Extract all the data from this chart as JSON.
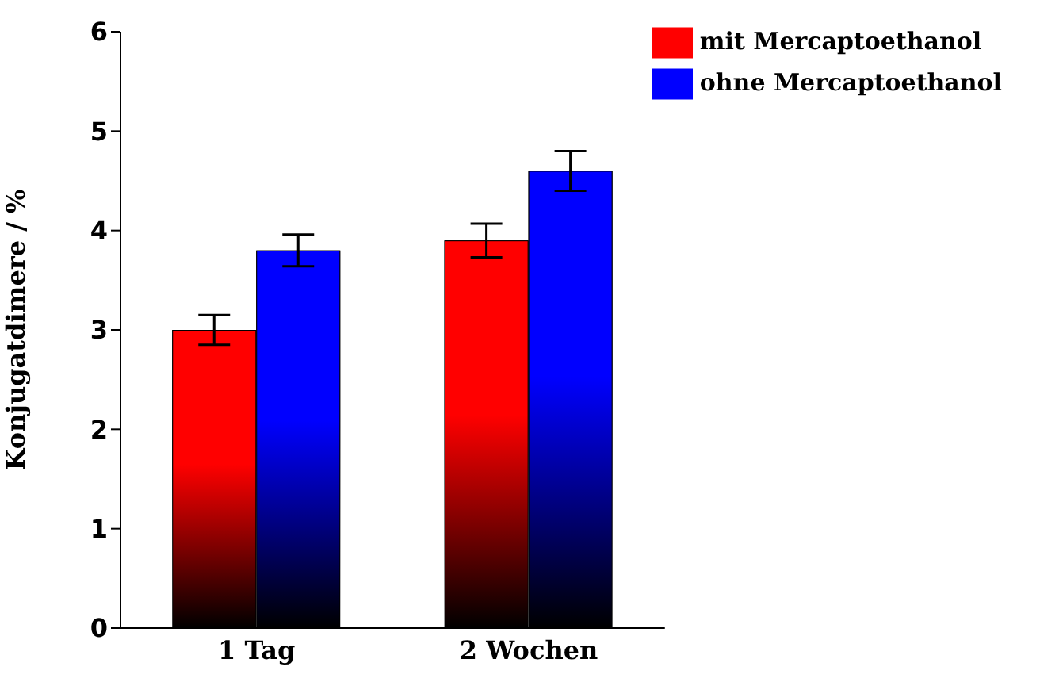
{
  "chart_data": {
    "type": "bar",
    "categories": [
      "1 Tag",
      "2 Wochen"
    ],
    "ylabel": "Konjugatdimere / %",
    "ylim": [
      0,
      6
    ],
    "yticks": [
      0,
      1,
      2,
      3,
      4,
      5,
      6
    ],
    "grid": false,
    "legend": "top right",
    "series": [
      {
        "name": "mit Mercaptoethanol",
        "color": "#ff0000",
        "values": [
          3.0,
          3.9
        ],
        "errors": [
          0.15,
          0.17
        ]
      },
      {
        "name": "ohne Mercaptoethanol",
        "color": "#0000ff",
        "values": [
          3.8,
          4.6
        ],
        "errors": [
          0.16,
          0.2
        ]
      }
    ]
  }
}
